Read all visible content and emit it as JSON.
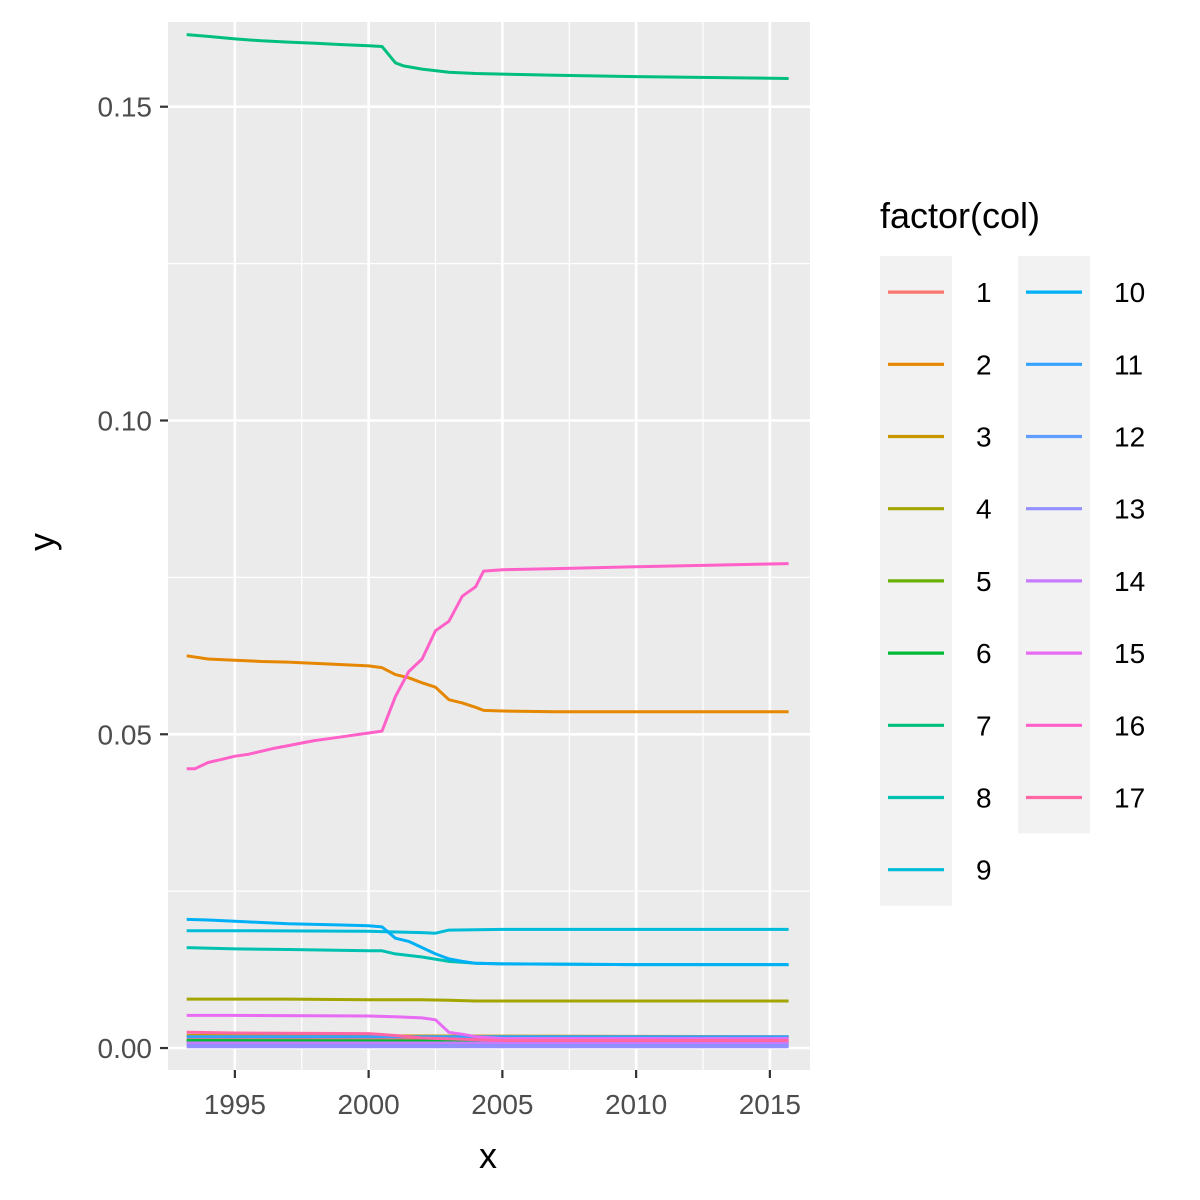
{
  "chart_data": {
    "type": "line",
    "title": "",
    "xlabel": "x",
    "ylabel": "y",
    "xlim": [
      1992.5,
      2016.5
    ],
    "ylim": [
      -0.0035,
      0.1635
    ],
    "x_ticks": [
      1995,
      2000,
      2005,
      2010,
      2015
    ],
    "x_tick_labels": [
      "1995",
      "2000",
      "2005",
      "2010",
      "2015"
    ],
    "y_ticks": [
      0,
      0.05,
      0.1,
      0.15
    ],
    "y_tick_labels": [
      "0.00",
      "0.05",
      "0.10",
      "0.15"
    ],
    "grid": true,
    "legend": {
      "title": "factor(col)",
      "placement": "right",
      "columns": 2
    },
    "series": [
      {
        "name": "1",
        "color": "#F8766D",
        "x": [
          1993.2,
          2015.7
        ],
        "y": [
          0.0015,
          0.0015
        ]
      },
      {
        "name": "2",
        "color": "#E58700",
        "x": [
          1993.2,
          1994,
          1995,
          1996,
          1997,
          1998,
          1999,
          2000,
          2000.5,
          2001,
          2001.5,
          2002,
          2002.5,
          2003,
          2003.5,
          2004,
          2004.3,
          2005,
          2007,
          2010,
          2015.7
        ],
        "y": [
          0.0625,
          0.062,
          0.0618,
          0.0616,
          0.0615,
          0.0613,
          0.0611,
          0.0609,
          0.0606,
          0.0595,
          0.059,
          0.0582,
          0.0575,
          0.0555,
          0.055,
          0.0543,
          0.0538,
          0.0537,
          0.0536,
          0.0536,
          0.0536
        ]
      },
      {
        "name": "3",
        "color": "#C99800",
        "x": [
          1993.2,
          2015.7
        ],
        "y": [
          0.002,
          0.0018
        ]
      },
      {
        "name": "4",
        "color": "#A3A500",
        "x": [
          1993.2,
          1997,
          2000,
          2002,
          2003,
          2004,
          2005,
          2010,
          2015.7
        ],
        "y": [
          0.0078,
          0.0078,
          0.0077,
          0.0077,
          0.0076,
          0.0075,
          0.0075,
          0.0075,
          0.0075
        ]
      },
      {
        "name": "5",
        "color": "#6BB100",
        "x": [
          1993.2,
          2015.7
        ],
        "y": [
          0.001,
          0.0008
        ]
      },
      {
        "name": "6",
        "color": "#00BA38",
        "x": [
          1993.2,
          2015.7
        ],
        "y": [
          0.0012,
          0.001
        ]
      },
      {
        "name": "7",
        "color": "#00BF7D",
        "x": [
          1993.2,
          1994,
          1995,
          1996,
          1997,
          1998,
          1999,
          2000,
          2000.5,
          2001,
          2001.3,
          2002,
          2003,
          2004,
          2005,
          2007,
          2010,
          2015.7
        ],
        "y": [
          0.1615,
          0.1612,
          0.1608,
          0.1605,
          0.1603,
          0.1601,
          0.1599,
          0.1597,
          0.1596,
          0.157,
          0.1565,
          0.156,
          0.1555,
          0.1553,
          0.1552,
          0.155,
          0.1548,
          0.1545
        ]
      },
      {
        "name": "8",
        "color": "#00C0AF",
        "x": [
          1993.2,
          1995,
          1997,
          2000,
          2000.5,
          2001,
          2002,
          2003,
          2004,
          2005,
          2010,
          2015.7
        ],
        "y": [
          0.016,
          0.0158,
          0.0157,
          0.0155,
          0.0155,
          0.015,
          0.0145,
          0.0138,
          0.0135,
          0.0134,
          0.0133,
          0.0133
        ]
      },
      {
        "name": "9",
        "color": "#00BCD8",
        "x": [
          1993.2,
          1995,
          2000,
          2002,
          2002.5,
          2003,
          2005,
          2010,
          2015.7
        ],
        "y": [
          0.0187,
          0.0187,
          0.0186,
          0.0184,
          0.0183,
          0.0188,
          0.0189,
          0.0189,
          0.0189
        ]
      },
      {
        "name": "10",
        "color": "#00B0F6",
        "x": [
          1993.2,
          1994,
          1995,
          1996,
          1997,
          1998,
          1999,
          2000,
          2000.5,
          2001,
          2001.5,
          2002,
          2002.5,
          2003,
          2003.5,
          2004,
          2005,
          2010,
          2015.7
        ],
        "y": [
          0.0205,
          0.0204,
          0.0202,
          0.02,
          0.0198,
          0.0197,
          0.0196,
          0.0195,
          0.0193,
          0.0175,
          0.017,
          0.016,
          0.015,
          0.0142,
          0.0138,
          0.0135,
          0.0134,
          0.0133,
          0.0133
        ]
      },
      {
        "name": "11",
        "color": "#35A2FF",
        "x": [
          1993.2,
          2015.7
        ],
        "y": [
          0.0018,
          0.0018
        ]
      },
      {
        "name": "12",
        "color": "#619CFF",
        "x": [
          1993.2,
          2015.7
        ],
        "y": [
          0.0005,
          0.0005
        ]
      },
      {
        "name": "13",
        "color": "#9590FF",
        "x": [
          1993.2,
          2015.7
        ],
        "y": [
          0.0002,
          0.0002
        ]
      },
      {
        "name": "14",
        "color": "#C77CFF",
        "x": [
          1993.2,
          2015.7
        ],
        "y": [
          0.0008,
          0.0008
        ]
      },
      {
        "name": "15",
        "color": "#E76BF3",
        "x": [
          1993.2,
          1995,
          2000,
          2001,
          2002,
          2002.5,
          2003,
          2003.5,
          2004,
          2005,
          2015.7
        ],
        "y": [
          0.0052,
          0.0052,
          0.0051,
          0.005,
          0.0048,
          0.0045,
          0.0025,
          0.0022,
          0.0018,
          0.0015,
          0.0015
        ]
      },
      {
        "name": "16",
        "color": "#FF61C9",
        "x": [
          1993.2,
          1993.5,
          1994,
          1994.5,
          1995,
          1995.5,
          1996,
          1996.5,
          1997,
          1997.5,
          1998,
          1998.5,
          1999,
          1999.5,
          2000,
          2000.5,
          2001,
          2001.5,
          2002,
          2002.5,
          2003,
          2003.5,
          2004,
          2004.3,
          2005,
          2007,
          2010,
          2015.7
        ],
        "y": [
          0.0445,
          0.0445,
          0.0455,
          0.046,
          0.0465,
          0.0468,
          0.0473,
          0.0478,
          0.0482,
          0.0486,
          0.049,
          0.0493,
          0.0496,
          0.0499,
          0.0502,
          0.0505,
          0.056,
          0.06,
          0.062,
          0.0665,
          0.068,
          0.072,
          0.0735,
          0.076,
          0.0762,
          0.0764,
          0.0767,
          0.0772
        ]
      },
      {
        "name": "17",
        "color": "#FF67A4",
        "x": [
          1993.2,
          1995,
          2000,
          2001,
          2002,
          2005,
          2010,
          2015.7
        ],
        "y": [
          0.0025,
          0.0024,
          0.0023,
          0.002,
          0.0016,
          0.0012,
          0.0012,
          0.0012
        ]
      }
    ]
  }
}
